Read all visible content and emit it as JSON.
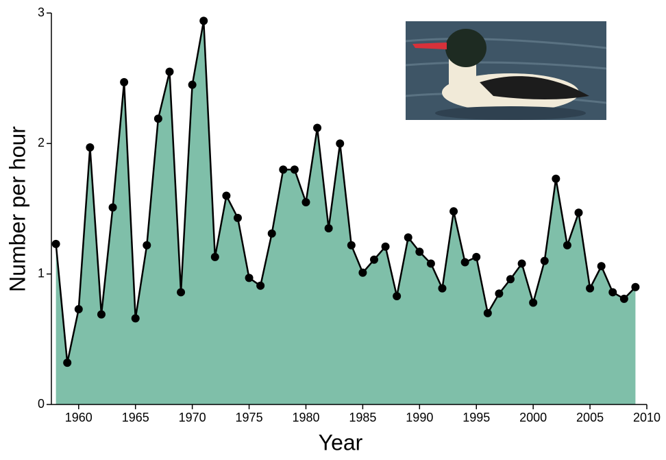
{
  "chart_data": {
    "type": "area",
    "xlabel": "Year",
    "ylabel": "Number per hour",
    "x": [
      1958,
      1959,
      1960,
      1961,
      1962,
      1963,
      1964,
      1965,
      1966,
      1967,
      1968,
      1969,
      1970,
      1971,
      1972,
      1973,
      1974,
      1975,
      1976,
      1977,
      1978,
      1979,
      1980,
      1981,
      1982,
      1983,
      1984,
      1985,
      1986,
      1987,
      1988,
      1989,
      1990,
      1991,
      1992,
      1993,
      1994,
      1995,
      1996,
      1997,
      1998,
      1999,
      2000,
      2001,
      2002,
      2003,
      2004,
      2005,
      2006,
      2007,
      2008,
      2009
    ],
    "values": [
      1.23,
      0.32,
      0.73,
      1.97,
      0.69,
      1.51,
      2.47,
      0.66,
      1.22,
      2.19,
      2.55,
      0.86,
      2.45,
      2.94,
      1.13,
      1.6,
      1.43,
      0.97,
      0.91,
      1.31,
      1.8,
      1.8,
      1.55,
      2.12,
      1.35,
      2.0,
      1.22,
      1.01,
      1.11,
      1.21,
      0.83,
      1.28,
      1.17,
      1.08,
      0.89,
      1.48,
      1.09,
      1.13,
      0.7,
      0.85,
      0.96,
      1.08,
      0.78,
      1.1,
      1.73,
      1.22,
      1.47,
      0.89,
      1.06,
      0.86,
      0.81,
      0.9
    ],
    "color": "#7fbfa9",
    "line_color": "#000000",
    "xlim": [
      1957.6,
      2010
    ],
    "xticks": [
      1960,
      1965,
      1970,
      1975,
      1980,
      1985,
      1990,
      1995,
      2000,
      2005,
      2010
    ],
    "ylim": [
      0,
      3
    ],
    "yticks": [
      0,
      1,
      2,
      3
    ]
  }
}
